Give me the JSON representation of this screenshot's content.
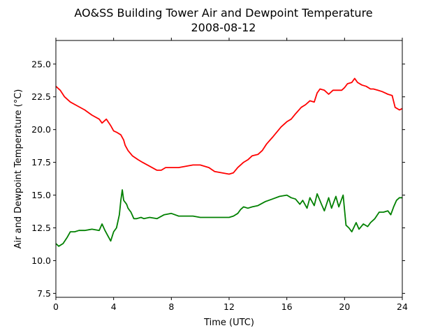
{
  "chart_data": {
    "type": "line",
    "title": "AO&SS Building Tower Air and Dewpoint Temperature",
    "subtitle": "2008-08-12",
    "xlabel": "Time (UTC)",
    "ylabel": "Air and Dewpoint Temperature (°C)",
    "xlim": [
      0,
      24
    ],
    "ylim": [
      7.2,
      26.8
    ],
    "x_ticks": [
      0,
      4,
      8,
      12,
      16,
      20,
      24
    ],
    "x_tick_labels": [
      "0",
      "4",
      "8",
      "12",
      "16",
      "20",
      "24"
    ],
    "y_ticks": [
      7.5,
      10.0,
      12.5,
      15.0,
      17.5,
      20.0,
      22.5,
      25.0
    ],
    "y_tick_labels": [
      "7.5",
      "10.0",
      "12.5",
      "15.0",
      "17.5",
      "20.0",
      "22.5",
      "25.0"
    ],
    "grid": false,
    "legend": "none",
    "series": [
      {
        "color": "#ff0000",
        "x": [
          0,
          0.3,
          0.6,
          1.0,
          1.5,
          2.0,
          2.5,
          3.0,
          3.2,
          3.5,
          3.8,
          4.0,
          4.2,
          4.5,
          4.7,
          4.8,
          5.0,
          5.3,
          5.7,
          6.0,
          6.5,
          7.0,
          7.3,
          7.6,
          8.0,
          8.5,
          9.0,
          9.5,
          10.0,
          10.3,
          10.6,
          11.0,
          11.5,
          12.0,
          12.3,
          12.6,
          13.0,
          13.3,
          13.6,
          14.0,
          14.3,
          14.6,
          15.0,
          15.3,
          15.6,
          16.0,
          16.3,
          16.6,
          17.0,
          17.3,
          17.6,
          17.9,
          18.1,
          18.3,
          18.6,
          18.9,
          19.2,
          19.5,
          19.8,
          20.0,
          20.2,
          20.5,
          20.7,
          20.9,
          21.2,
          21.5,
          21.8,
          22.0,
          22.3,
          22.6,
          22.8,
          23.0,
          23.3,
          23.5,
          23.8,
          24.0
        ],
        "y": [
          23.3,
          23.0,
          22.5,
          22.1,
          21.8,
          21.5,
          21.1,
          20.8,
          20.5,
          20.8,
          20.3,
          19.9,
          19.8,
          19.6,
          19.2,
          18.8,
          18.4,
          18.0,
          17.7,
          17.5,
          17.2,
          16.9,
          16.9,
          17.1,
          17.1,
          17.1,
          17.2,
          17.3,
          17.3,
          17.2,
          17.1,
          16.8,
          16.7,
          16.6,
          16.7,
          17.1,
          17.5,
          17.7,
          18.0,
          18.1,
          18.4,
          18.9,
          19.4,
          19.8,
          20.2,
          20.6,
          20.8,
          21.2,
          21.7,
          21.9,
          22.2,
          22.1,
          22.8,
          23.1,
          23.0,
          22.7,
          23.0,
          23.0,
          23.0,
          23.2,
          23.5,
          23.6,
          23.9,
          23.6,
          23.4,
          23.3,
          23.1,
          23.1,
          23.0,
          22.9,
          22.8,
          22.7,
          22.6,
          21.7,
          21.5,
          21.6
        ]
      },
      {
        "color": "#008000",
        "x": [
          0,
          0.2,
          0.5,
          0.8,
          1.0,
          1.3,
          1.6,
          2.0,
          2.5,
          3.0,
          3.2,
          3.4,
          3.6,
          3.8,
          4.0,
          4.2,
          4.4,
          4.5,
          4.6,
          4.7,
          4.9,
          5.0,
          5.2,
          5.4,
          5.6,
          5.9,
          6.1,
          6.5,
          7.0,
          7.5,
          8.0,
          8.5,
          9.0,
          9.5,
          10.0,
          10.5,
          11.0,
          11.5,
          12.0,
          12.3,
          12.6,
          12.8,
          13.0,
          13.3,
          13.6,
          14.0,
          14.5,
          15.0,
          15.5,
          16.0,
          16.3,
          16.6,
          16.9,
          17.1,
          17.4,
          17.6,
          17.9,
          18.1,
          18.4,
          18.6,
          18.9,
          19.1,
          19.4,
          19.6,
          19.9,
          20.1,
          20.3,
          20.5,
          20.8,
          21.0,
          21.3,
          21.6,
          21.8,
          22.1,
          22.4,
          22.7,
          23.0,
          23.2,
          23.4,
          23.6,
          23.8,
          24.0
        ],
        "y": [
          11.3,
          11.1,
          11.3,
          11.8,
          12.2,
          12.2,
          12.3,
          12.3,
          12.4,
          12.3,
          12.8,
          12.3,
          11.9,
          11.5,
          12.2,
          12.5,
          13.5,
          14.6,
          15.4,
          14.6,
          14.3,
          14.0,
          13.7,
          13.2,
          13.2,
          13.3,
          13.2,
          13.3,
          13.2,
          13.5,
          13.6,
          13.4,
          13.4,
          13.4,
          13.3,
          13.3,
          13.3,
          13.3,
          13.3,
          13.4,
          13.6,
          13.9,
          14.1,
          14.0,
          14.1,
          14.2,
          14.5,
          14.7,
          14.9,
          15.0,
          14.8,
          14.7,
          14.3,
          14.6,
          14.0,
          14.8,
          14.2,
          15.1,
          14.3,
          13.8,
          14.8,
          14.0,
          14.9,
          14.1,
          15.0,
          12.7,
          12.5,
          12.2,
          12.9,
          12.4,
          12.8,
          12.6,
          12.9,
          13.2,
          13.7,
          13.7,
          13.8,
          13.5,
          14.1,
          14.6,
          14.8,
          14.8
        ]
      }
    ]
  }
}
